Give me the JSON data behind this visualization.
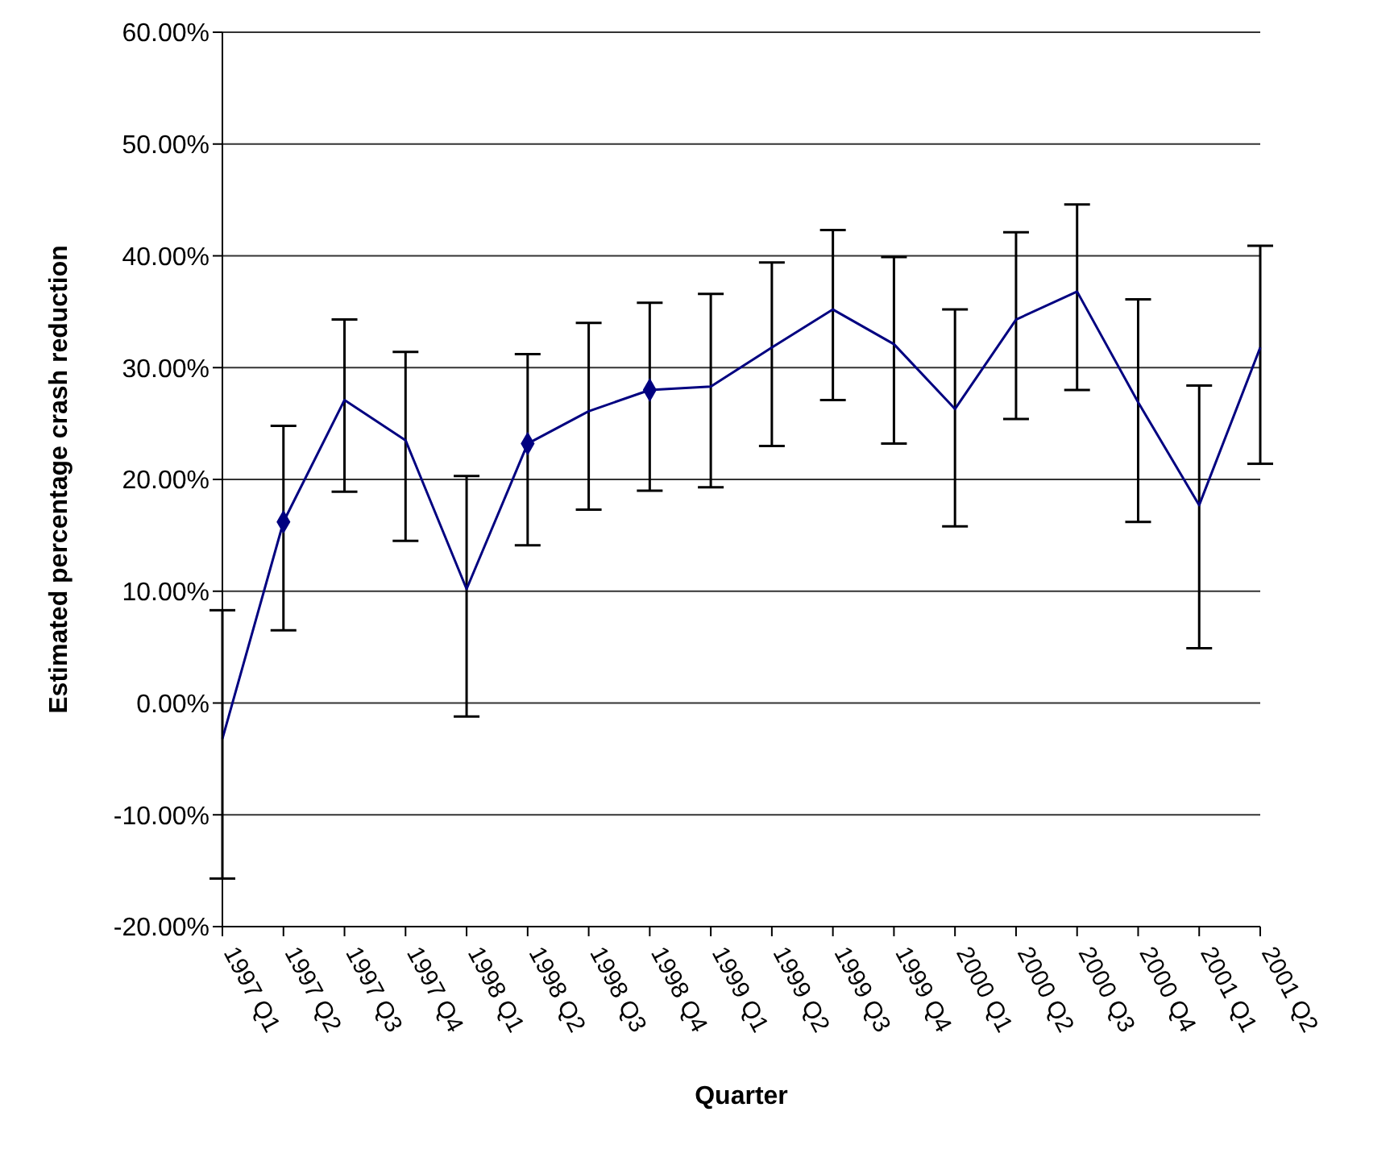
{
  "chart_data": {
    "type": "line",
    "xlabel": "Quarter",
    "ylabel": "Estimated percentage crash reduction",
    "categories": [
      "1997 Q1",
      "1997 Q2",
      "1997 Q3",
      "1997 Q4",
      "1998 Q1",
      "1998 Q2",
      "1998 Q3",
      "1998 Q4",
      "1999 Q1",
      "1999 Q2",
      "1999 Q3",
      "1999 Q4",
      "2000 Q1",
      "2000 Q2",
      "2000 Q3",
      "2000 Q4",
      "2001 Q1",
      "2001 Q2"
    ],
    "series": [
      {
        "color": "#000080",
        "marker": "none",
        "values": [
          -3.2,
          16.2,
          27.1,
          23.5,
          10.2,
          23.2,
          26.1,
          28.0,
          28.3,
          31.8,
          35.2,
          32.1,
          26.3,
          34.3,
          36.8,
          26.9,
          17.7,
          31.8
        ],
        "errors": [
          [
            -15.7,
            8.3
          ],
          [
            6.5,
            24.8
          ],
          [
            18.9,
            34.3
          ],
          [
            14.5,
            31.4
          ],
          [
            -1.2,
            20.3
          ],
          [
            14.1,
            31.2
          ],
          [
            17.3,
            34.0
          ],
          [
            19.0,
            35.8
          ],
          [
            19.3,
            36.6
          ],
          [
            23.0,
            39.4
          ],
          [
            27.1,
            42.3
          ],
          [
            23.2,
            39.9
          ],
          [
            15.8,
            35.2
          ],
          [
            25.4,
            42.1
          ],
          [
            28.0,
            44.6
          ],
          [
            16.2,
            36.1
          ],
          [
            4.9,
            28.4
          ],
          [
            21.4,
            40.9
          ]
        ]
      },
      {
        "type": "scatter",
        "color": "#000080",
        "marker": "diamond",
        "x": [
          "1997 Q2",
          "1998 Q2",
          "1998 Q4"
        ],
        "values": [
          16.2,
          23.2,
          28.0
        ]
      }
    ],
    "ylim": [
      -20,
      60
    ],
    "yticks": [
      {
        "value": -20,
        "label": "-20.00%"
      },
      {
        "value": -10,
        "label": "-10.00%"
      },
      {
        "value": 0,
        "label": "0.00%"
      },
      {
        "value": 10,
        "label": "10.00%"
      },
      {
        "value": 20,
        "label": "20.00%"
      },
      {
        "value": 30,
        "label": "30.00%"
      },
      {
        "value": 40,
        "label": "40.00%"
      },
      {
        "value": 50,
        "label": "50.00%"
      },
      {
        "value": 60,
        "label": "60.00%"
      }
    ],
    "grid": "y",
    "legend": false
  }
}
